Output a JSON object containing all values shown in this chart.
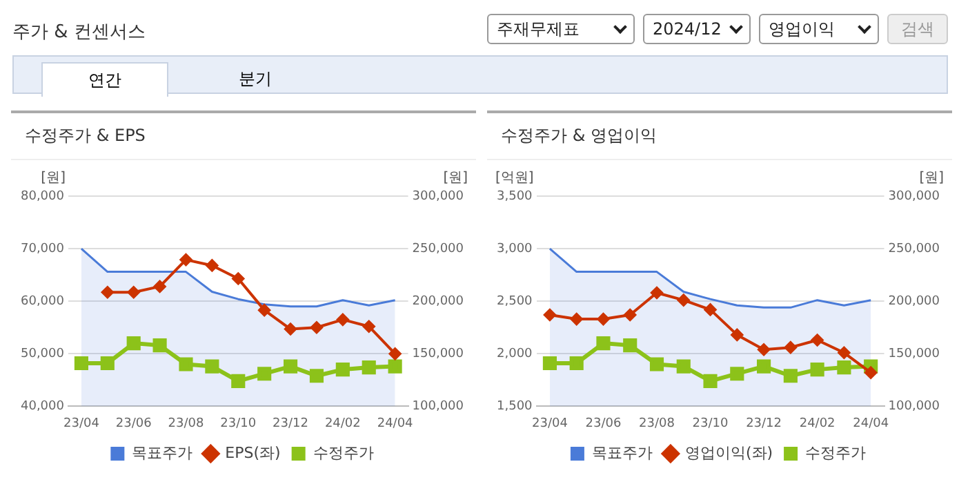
{
  "chart_data": [
    {
      "type": "line",
      "title": "수정주가 & EPS",
      "ylabel": "[원]",
      "y2label": "[원]",
      "annotations": [
        "주가 & 컨센서스",
        "주재무제표",
        "2024/12",
        "영업이익",
        "검색",
        "연간",
        "분기"
      ],
      "categories": [
        "23/04",
        null,
        "23/06",
        null,
        "23/08",
        null,
        "23/10",
        null,
        "23/12",
        null,
        "24/02",
        null,
        "24/04"
      ],
      "series": [
        {
          "name": "목표주가",
          "type": "area",
          "axis": "y2",
          "color": "#4a7bd8",
          "marker": "none",
          "values": [
            250000,
            228000,
            228000,
            228000,
            228000,
            209000,
            202000,
            197000,
            195000,
            195000,
            201000,
            196000,
            201000
          ]
        },
        {
          "name": "EPS(좌)",
          "color": "#cc3300",
          "marker": "diamond",
          "values": [
            null,
            61700,
            61700,
            62800,
            67900,
            66800,
            64300,
            58300,
            54700,
            55000,
            56500,
            55200,
            50000
          ]
        },
        {
          "name": "수정주가",
          "axis": "y2",
          "color": "#8cc21a",
          "marker": "square",
          "values": [
            141000,
            141000,
            160000,
            158000,
            140000,
            138000,
            124000,
            131000,
            138000,
            129000,
            135000,
            137000,
            138000
          ]
        }
      ],
      "ylim": [
        40000,
        80000
      ],
      "yticks": [
        {
          "value": 40000,
          "label": "40,000"
        },
        {
          "value": 50000,
          "label": "50,000"
        },
        {
          "value": 60000,
          "label": "60,000"
        },
        {
          "value": 70000,
          "label": "70,000"
        },
        {
          "value": 80000,
          "label": "80,000"
        }
      ],
      "y2lim": [
        100000,
        300000
      ],
      "y2ticks": [
        {
          "value": 100000,
          "label": "100,000"
        },
        {
          "value": 150000,
          "label": "150,000"
        },
        {
          "value": 200000,
          "label": "200,000"
        },
        {
          "value": 250000,
          "label": "250,000"
        },
        {
          "value": 300000,
          "label": "300,000"
        }
      ],
      "grid": "y",
      "legend": "bottom"
    },
    {
      "type": "line",
      "title": "수정주가 & 영업이익",
      "ylabel": "[억원]",
      "y2label": "[원]",
      "categories": [
        "23/04",
        null,
        "23/06",
        null,
        "23/08",
        null,
        "23/10",
        null,
        "23/12",
        null,
        "24/02",
        null,
        "24/04"
      ],
      "series": [
        {
          "name": "목표주가",
          "type": "area",
          "axis": "y2",
          "color": "#4a7bd8",
          "marker": "none",
          "values": [
            250000,
            228000,
            228000,
            228000,
            228000,
            209000,
            202000,
            196000,
            194000,
            194000,
            201000,
            196000,
            201000
          ]
        },
        {
          "name": "영업이익(좌)",
          "color": "#cc3300",
          "marker": "diamond",
          "values": [
            2370,
            2330,
            2330,
            2370,
            2580,
            2510,
            2420,
            2180,
            2040,
            2060,
            2130,
            2010,
            1820
          ]
        },
        {
          "name": "수정주가",
          "axis": "y2",
          "color": "#8cc21a",
          "marker": "square",
          "values": [
            141000,
            141000,
            160000,
            158000,
            140000,
            138000,
            124000,
            131000,
            138000,
            129000,
            135000,
            137000,
            138000
          ]
        }
      ],
      "ylim": [
        1500,
        3500
      ],
      "yticks": [
        {
          "value": 1500,
          "label": "1,500"
        },
        {
          "value": 2000,
          "label": "2,000"
        },
        {
          "value": 2500,
          "label": "2,500"
        },
        {
          "value": 3000,
          "label": "3,000"
        },
        {
          "value": 3500,
          "label": "3,500"
        }
      ],
      "y2lim": [
        100000,
        300000
      ],
      "y2ticks": [
        {
          "value": 100000,
          "label": "100,000"
        },
        {
          "value": 150000,
          "label": "150,000"
        },
        {
          "value": 200000,
          "label": "200,000"
        },
        {
          "value": 250000,
          "label": "250,000"
        },
        {
          "value": 300000,
          "label": "300,000"
        }
      ],
      "grid": "y",
      "legend": "bottom"
    }
  ]
}
